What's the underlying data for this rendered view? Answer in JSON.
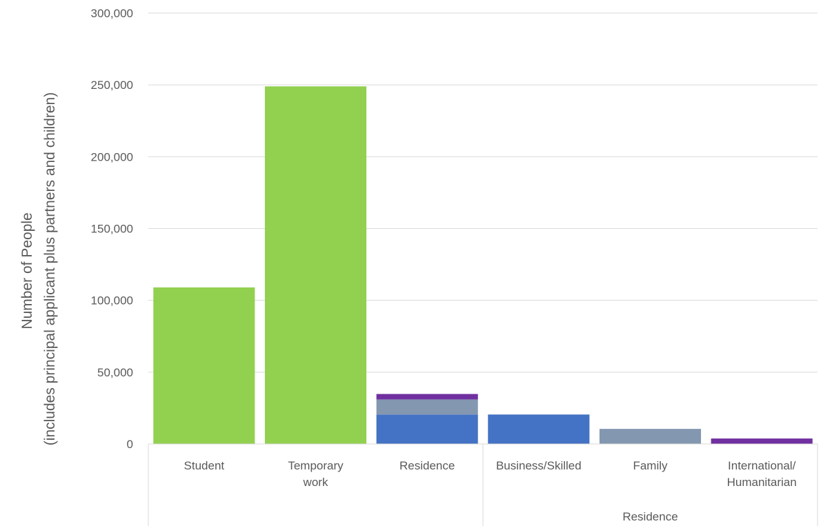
{
  "chart_data": {
    "type": "bar",
    "stacked": true,
    "title": "",
    "xlabel": "",
    "ylabel_lines": [
      "Number of People",
      "(includes principal applicant plus partners and children)"
    ],
    "ylim": [
      0,
      300000
    ],
    "yticks": [
      0,
      50000,
      100000,
      150000,
      200000,
      250000,
      300000
    ],
    "ytick_labels": [
      "0",
      "50,000",
      "100,000",
      "150,000",
      "200,000",
      "250,000",
      "300,000"
    ],
    "grid": true,
    "legend": "none",
    "categories": [
      {
        "label_lines": [
          "Student"
        ],
        "group": ""
      },
      {
        "label_lines": [
          "Temporary",
          "work"
        ],
        "group": ""
      },
      {
        "label_lines": [
          "Residence"
        ],
        "group": ""
      },
      {
        "label_lines": [
          "Business/Skilled"
        ],
        "group": "Residence"
      },
      {
        "label_lines": [
          "Family"
        ],
        "group": "Residence"
      },
      {
        "label_lines": [
          "International/",
          "Humanitarian"
        ],
        "group": "Residence"
      }
    ],
    "groups": [
      {
        "label": "",
        "start": 0,
        "end": 2
      },
      {
        "label": "Residence",
        "start": 3,
        "end": 5
      }
    ],
    "series": [
      {
        "color": "#92d050",
        "values": [
          109000,
          249000,
          0,
          0,
          0,
          0
        ]
      },
      {
        "color": "#4472c4",
        "values": [
          0,
          0,
          20500,
          20500,
          0,
          0
        ]
      },
      {
        "color": "#8497b0",
        "values": [
          0,
          0,
          10500,
          0,
          10500,
          0
        ]
      },
      {
        "color": "#7030a0",
        "values": [
          0,
          0,
          3800,
          0,
          0,
          3800
        ]
      }
    ]
  }
}
